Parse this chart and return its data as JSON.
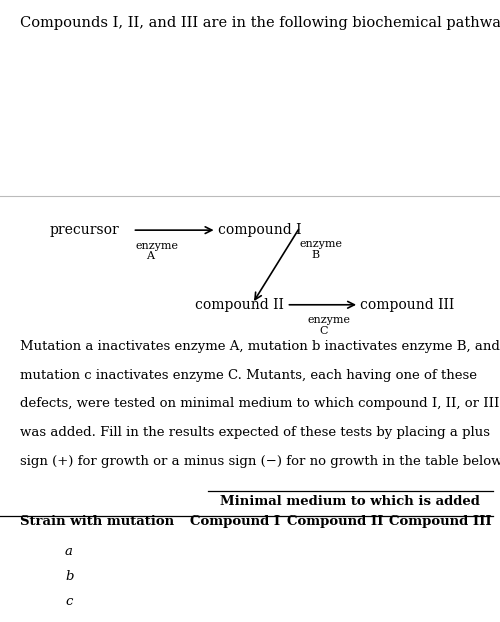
{
  "background_color": "#ffffff",
  "title_text": "Compounds I, II, and III are in the following biochemical pathway:",
  "title_fontsize": 10.5,
  "pathway": {
    "precursor_label": "precursor",
    "compound1_label": "compound I",
    "compound2_label": "compound II",
    "compound3_label": "compound III",
    "enzymeA_label1": "enzyme",
    "enzymeA_label2": "A",
    "enzymeB_label1": "enzyme",
    "enzymeB_label2": "B",
    "enzymeC_label1": "enzyme",
    "enzymeC_label2": "C"
  },
  "paragraph_lines": [
    "Mutation a inactivates enzyme A, mutation b inactivates enzyme B, and",
    "mutation c inactivates enzyme C. Mutants, each having one of these",
    "defects, were tested on minimal medium to which compound I, II, or III",
    "was added. Fill in the results expected of these tests by placing a plus",
    "sign (+) for growth or a minus sign (−) for no growth in the table below."
  ],
  "table_header1": "Minimal medium to which is added",
  "table_header2_col1": "Strain with mutation",
  "table_header2_col2": "Compound I",
  "table_header2_col3": "Compound II",
  "table_header2_col4": "Compound III",
  "mutations": [
    "a",
    "b",
    "c"
  ],
  "font_family": "serif",
  "text_color": "#000000",
  "line_color": "#000000"
}
